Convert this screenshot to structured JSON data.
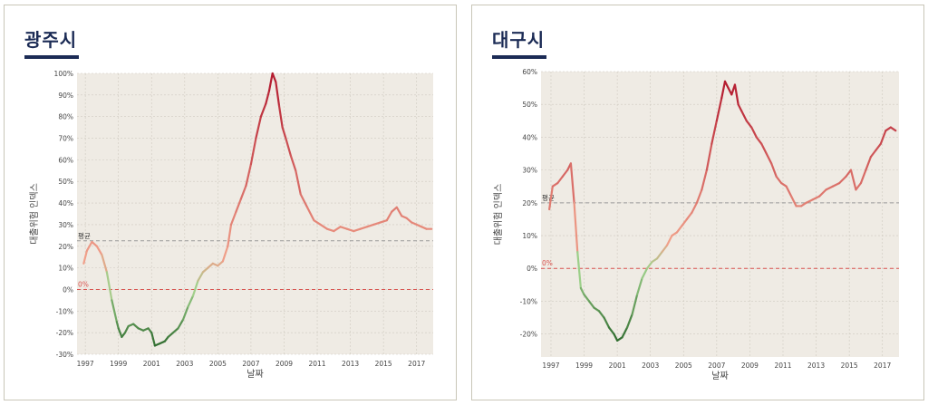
{
  "panels": [
    {
      "title": "광주시",
      "chart_data": {
        "type": "line",
        "xlabel": "날짜",
        "ylabel": "대출위험 인덱스",
        "x_ticks": [
          "1997",
          "1999",
          "2001",
          "2003",
          "2005",
          "2007",
          "2009",
          "2011",
          "2013",
          "2015",
          "2017"
        ],
        "y_ticks": [
          "100%",
          "90%",
          "80%",
          "70%",
          "60%",
          "50%",
          "40%",
          "30%",
          "20%",
          "10%",
          "0%",
          "-10%",
          "-20%",
          "-30%"
        ],
        "ylim": [
          -30,
          100
        ],
        "xlim": [
          1996.5,
          2018.0
        ],
        "reference_lines": [
          {
            "label": "평균",
            "value": 22.5,
            "color": "#9a9a9a",
            "style": "dashed"
          },
          {
            "label": "0%",
            "value": 0,
            "color": "#d9534f",
            "style": "dashed"
          }
        ],
        "series": [
          {
            "x": [
              1996.9,
              1997.1,
              1997.4,
              1997.7,
              1998.0,
              1998.3,
              1998.6,
              1998.9,
              1999.0,
              1999.2,
              1999.4,
              1999.6,
              1999.9,
              2000.2,
              2000.5,
              2000.8,
              2001.0,
              2001.2,
              2001.5,
              2001.8,
              2002.0,
              2002.3,
              2002.6,
              2002.9,
              2003.2,
              2003.5,
              2003.8,
              2004.1,
              2004.4,
              2004.7,
              2005.0,
              2005.3,
              2005.6,
              2005.8,
              2006.1,
              2006.4,
              2006.7,
              2007.0,
              2007.3,
              2007.6,
              2007.9,
              2008.1,
              2008.3,
              2008.5,
              2008.7,
              2008.9,
              2009.1,
              2009.4,
              2009.7,
              2010.0,
              2010.4,
              2010.8,
              2011.2,
              2011.6,
              2012.0,
              2012.4,
              2012.8,
              2013.2,
              2013.6,
              2014.0,
              2014.4,
              2014.8,
              2015.2,
              2015.5,
              2015.8,
              2016.1,
              2016.4,
              2016.7,
              2017.0,
              2017.3,
              2017.6,
              2017.9
            ],
            "y": [
              12,
              18,
              22,
              20,
              16,
              8,
              -5,
              -15,
              -18,
              -22,
              -20,
              -17,
              -16,
              -18,
              -19,
              -18,
              -20,
              -26,
              -25,
              -24,
              -22,
              -20,
              -18,
              -14,
              -8,
              -3,
              4,
              8,
              10,
              12,
              11,
              13,
              20,
              30,
              36,
              42,
              48,
              58,
              70,
              80,
              86,
              92,
              100,
              96,
              85,
              75,
              70,
              62,
              55,
              44,
              38,
              32,
              30,
              28,
              27,
              29,
              28,
              27,
              28,
              29,
              30,
              31,
              32,
              36,
              38,
              34,
              33,
              31,
              30,
              29,
              28,
              28
            ]
          }
        ]
      }
    },
    {
      "title": "대구시",
      "chart_data": {
        "type": "line",
        "xlabel": "날짜",
        "ylabel": "대출위험 인덱스",
        "x_ticks": [
          "1997",
          "1999",
          "2001",
          "2003",
          "2005",
          "2007",
          "2009",
          "2011",
          "2013",
          "2015",
          "2017"
        ],
        "y_ticks": [
          "60%",
          "50%",
          "40%",
          "30%",
          "20%",
          "10%",
          "0%",
          "-10%",
          "-20%"
        ],
        "ylim": [
          -27,
          60
        ],
        "xlim": [
          1996.4,
          2018.0
        ],
        "reference_lines": [
          {
            "label": "평균",
            "value": 20,
            "color": "#9a9a9a",
            "style": "dashed"
          },
          {
            "label": "0%",
            "value": 0,
            "color": "#d9534f",
            "style": "dashed"
          }
        ],
        "series": [
          {
            "x": [
              1996.9,
              1997.1,
              1997.4,
              1997.7,
              1998.0,
              1998.2,
              1998.4,
              1998.6,
              1998.8,
              1999.0,
              1999.3,
              1999.6,
              1999.9,
              2000.2,
              2000.5,
              2000.8,
              2001.0,
              2001.3,
              2001.6,
              2001.9,
              2002.2,
              2002.5,
              2002.8,
              2003.1,
              2003.4,
              2003.7,
              2004.0,
              2004.3,
              2004.6,
              2004.9,
              2005.2,
              2005.5,
              2005.8,
              2006.1,
              2006.4,
              2006.7,
              2007.0,
              2007.3,
              2007.5,
              2007.7,
              2007.9,
              2008.1,
              2008.3,
              2008.5,
              2008.8,
              2009.1,
              2009.4,
              2009.7,
              2010.0,
              2010.3,
              2010.6,
              2010.9,
              2011.2,
              2011.5,
              2011.8,
              2012.1,
              2012.4,
              2012.8,
              2013.2,
              2013.6,
              2014.0,
              2014.4,
              2014.8,
              2015.1,
              2015.4,
              2015.7,
              2016.0,
              2016.3,
              2016.6,
              2016.9,
              2017.2,
              2017.5,
              2017.8
            ],
            "y": [
              18,
              25,
              26,
              28,
              30,
              32,
              20,
              5,
              -6,
              -8,
              -10,
              -12,
              -13,
              -15,
              -18,
              -20,
              -22,
              -21,
              -18,
              -14,
              -8,
              -3,
              0,
              2,
              3,
              5,
              7,
              10,
              11,
              13,
              15,
              17,
              20,
              24,
              30,
              38,
              45,
              52,
              57,
              55,
              53,
              56,
              50,
              48,
              45,
              43,
              40,
              38,
              35,
              32,
              28,
              26,
              25,
              22,
              19,
              19,
              20,
              21,
              22,
              24,
              25,
              26,
              28,
              30,
              24,
              26,
              30,
              34,
              36,
              38,
              42,
              43,
              42
            ]
          }
        ]
      }
    }
  ]
}
